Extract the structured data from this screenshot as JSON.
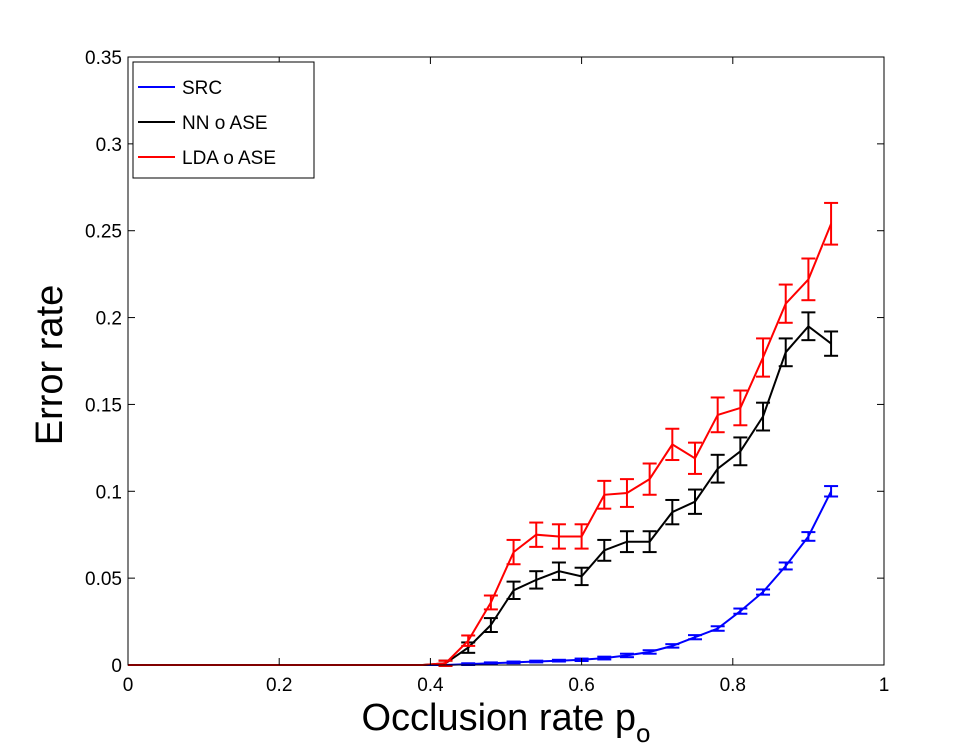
{
  "chart_data": {
    "type": "line",
    "xlabel": "Occlusion rate p",
    "xlabel_subscript": "o",
    "ylabel": "Error rate",
    "xlim": [
      0,
      1
    ],
    "ylim": [
      0,
      0.35
    ],
    "xticks": [
      0,
      0.2,
      0.4,
      0.6,
      0.8,
      1
    ],
    "yticks": [
      0,
      0.05,
      0.1,
      0.15,
      0.2,
      0.25,
      0.3,
      0.35
    ],
    "xtick_labels": [
      "0",
      "0.2",
      "0.4",
      "0.6",
      "0.8",
      "1"
    ],
    "ytick_labels": [
      "0",
      "0.05",
      "0.1",
      "0.15",
      "0.2",
      "0.25",
      "0.3",
      "0.35"
    ],
    "grid": false,
    "legend_position": "top-left",
    "x": [
      0,
      0.03,
      0.06,
      0.09,
      0.12,
      0.15,
      0.18,
      0.21,
      0.24,
      0.27,
      0.3,
      0.33,
      0.36,
      0.39,
      0.42,
      0.45,
      0.48,
      0.51,
      0.54,
      0.57,
      0.6,
      0.63,
      0.66,
      0.69,
      0.72,
      0.75,
      0.78,
      0.81,
      0.84,
      0.87,
      0.9,
      0.93
    ],
    "series": [
      {
        "name": "SRC",
        "color": "#0000ff",
        "values": [
          0,
          0,
          0,
          0,
          0,
          0,
          0,
          0,
          0,
          0,
          0,
          0,
          0,
          0,
          0,
          0.0005,
          0.001,
          0.0015,
          0.002,
          0.0025,
          0.003,
          0.004,
          0.0055,
          0.0075,
          0.011,
          0.016,
          0.021,
          0.031,
          0.042,
          0.057,
          0.074,
          0.1
        ],
        "errors": [
          0,
          0,
          0,
          0,
          0,
          0,
          0,
          0,
          0,
          0,
          0,
          0,
          0,
          0,
          0,
          0.0005,
          0.0005,
          0.0005,
          0.0005,
          0.0005,
          0.0007,
          0.0008,
          0.001,
          0.001,
          0.001,
          0.0012,
          0.0013,
          0.0015,
          0.0015,
          0.002,
          0.0025,
          0.003
        ]
      },
      {
        "name": "NN o ASE",
        "color": "#000000",
        "values": [
          0,
          0,
          0,
          0,
          0,
          0,
          0,
          0,
          0,
          0,
          0,
          0,
          0,
          0,
          0.001,
          0.01,
          0.023,
          0.043,
          0.049,
          0.054,
          0.051,
          0.066,
          0.071,
          0.071,
          0.088,
          0.094,
          0.113,
          0.123,
          0.143,
          0.18,
          0.195,
          0.185
        ],
        "errors": [
          0,
          0,
          0,
          0,
          0,
          0,
          0,
          0,
          0,
          0,
          0,
          0,
          0,
          0,
          0.0015,
          0.003,
          0.004,
          0.005,
          0.005,
          0.005,
          0.005,
          0.006,
          0.006,
          0.006,
          0.007,
          0.007,
          0.008,
          0.008,
          0.008,
          0.008,
          0.008,
          0.007
        ]
      },
      {
        "name": "LDA o ASE",
        "color": "#ff0000",
        "values": [
          0,
          0,
          0,
          0,
          0,
          0,
          0,
          0,
          0,
          0,
          0,
          0,
          0,
          0,
          0.001,
          0.014,
          0.036,
          0.065,
          0.075,
          0.074,
          0.074,
          0.098,
          0.099,
          0.107,
          0.127,
          0.119,
          0.144,
          0.148,
          0.177,
          0.208,
          0.222,
          0.254
        ],
        "errors": [
          0,
          0,
          0,
          0,
          0,
          0,
          0,
          0,
          0,
          0,
          0,
          0,
          0,
          0,
          0.0015,
          0.003,
          0.004,
          0.007,
          0.007,
          0.007,
          0.007,
          0.008,
          0.008,
          0.009,
          0.009,
          0.009,
          0.01,
          0.01,
          0.011,
          0.011,
          0.012,
          0.012
        ]
      }
    ]
  }
}
